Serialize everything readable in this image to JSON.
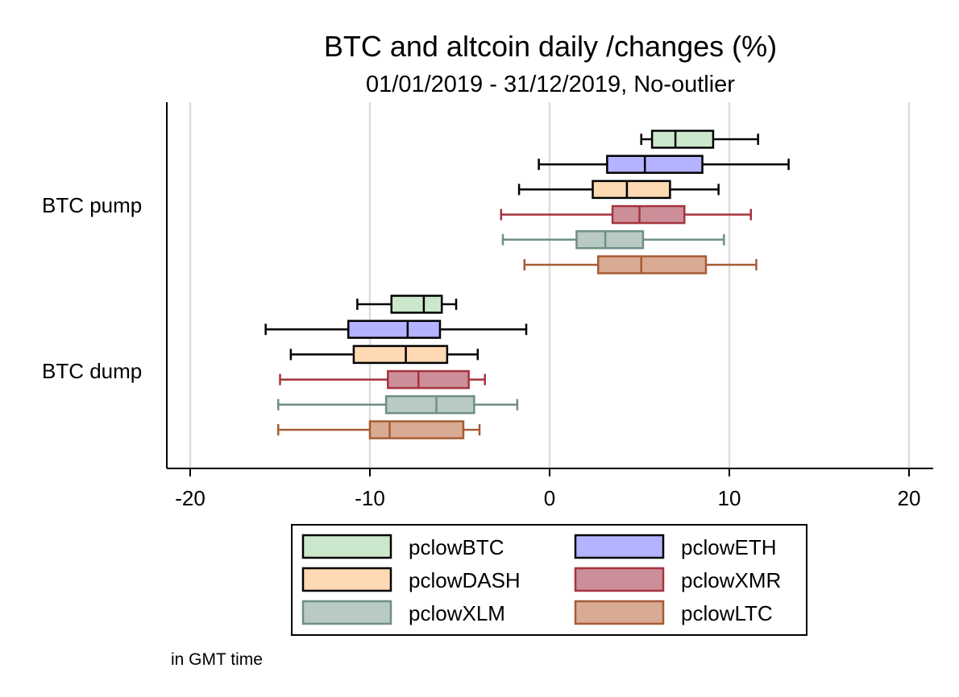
{
  "chart_data": {
    "type": "boxplot",
    "orientation": "horizontal",
    "title": "BTC and altcoin daily /changes (%)",
    "subtitle": "01/01/2019 - 31/12/2019, No-outlier",
    "note": "in GMT time",
    "xlim": [
      -21.5,
      21.5
    ],
    "xticks": [
      -20,
      -10,
      0,
      10,
      20
    ],
    "grid": true,
    "legend_position": "bottom",
    "groups": [
      "BTC pump",
      "BTC dump"
    ],
    "series": [
      {
        "name": "pclowBTC",
        "fill": "#cce8cc",
        "stroke": "#000000",
        "stats": {
          "BTC pump": {
            "min": 5.1,
            "q1": 5.7,
            "median": 7.0,
            "q3": 9.1,
            "max": 11.6
          },
          "BTC dump": {
            "min": -10.7,
            "q1": -8.8,
            "median": -7.0,
            "q3": -6.0,
            "max": -5.2
          }
        }
      },
      {
        "name": "pclowETH",
        "fill": "#b3b3ff",
        "stroke": "#000000",
        "stats": {
          "BTC pump": {
            "min": -0.6,
            "q1": 3.2,
            "median": 5.3,
            "q3": 8.5,
            "max": 13.3
          },
          "BTC dump": {
            "min": -15.8,
            "q1": -11.2,
            "median": -7.9,
            "q3": -6.1,
            "max": -1.3
          }
        }
      },
      {
        "name": "pclowDASH",
        "fill": "#ffd9b3",
        "stroke": "#000000",
        "stats": {
          "BTC pump": {
            "min": -1.7,
            "q1": 2.4,
            "median": 4.3,
            "q3": 6.7,
            "max": 9.4
          },
          "BTC dump": {
            "min": -14.4,
            "q1": -10.9,
            "median": -8.0,
            "q3": -5.7,
            "max": -4.0
          }
        }
      },
      {
        "name": "pclowXMR",
        "fill": "#cc8f99",
        "stroke": "#a6333d",
        "stats": {
          "BTC pump": {
            "min": -2.7,
            "q1": 3.5,
            "median": 5.0,
            "q3": 7.5,
            "max": 11.2
          },
          "BTC dump": {
            "min": -15.0,
            "q1": -9.0,
            "median": -7.3,
            "q3": -4.5,
            "max": -3.6
          }
        }
      },
      {
        "name": "pclowXLM",
        "fill": "#b9c9c4",
        "stroke": "#6e8f86",
        "stats": {
          "BTC pump": {
            "min": -2.6,
            "q1": 1.5,
            "median": 3.1,
            "q3": 5.2,
            "max": 9.7
          },
          "BTC dump": {
            "min": -15.1,
            "q1": -9.1,
            "median": -6.3,
            "q3": -4.2,
            "max": -1.8
          }
        }
      },
      {
        "name": "pclowLTC",
        "fill": "#d9ab94",
        "stroke": "#a65c33",
        "stats": {
          "BTC pump": {
            "min": -1.4,
            "q1": 2.7,
            "median": 5.1,
            "q3": 8.7,
            "max": 11.5
          },
          "BTC dump": {
            "min": -15.1,
            "q1": -10.0,
            "median": -8.9,
            "q3": -4.8,
            "max": -3.9
          }
        }
      }
    ],
    "legend_order": [
      "pclowBTC",
      "pclowETH",
      "pclowDASH",
      "pclowXMR",
      "pclowXLM",
      "pclowLTC"
    ]
  }
}
